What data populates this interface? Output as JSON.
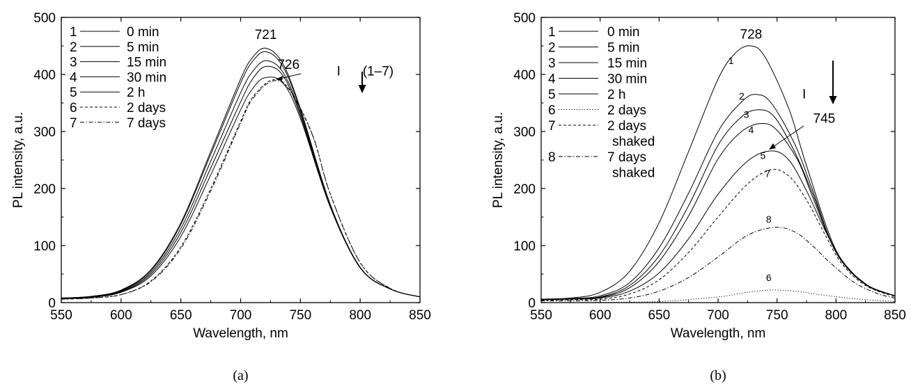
{
  "chart_data": [
    {
      "type": "line",
      "caption": "(a)",
      "xlabel": "Wavelength, nm",
      "ylabel": "PL intensity, a.u.",
      "xlim": [
        550,
        850
      ],
      "ylim": [
        0,
        500
      ],
      "xticks": [
        550,
        600,
        650,
        700,
        750,
        800,
        850
      ],
      "yticks": [
        0,
        100,
        200,
        300,
        400,
        500
      ],
      "legend_position": "top-left",
      "series": [
        {
          "id": "1",
          "name": "0 min",
          "style": "solid",
          "x": [
            550,
            575,
            600,
            625,
            650,
            675,
            700,
            710,
            721,
            735,
            750,
            775,
            800,
            825,
            850
          ],
          "y": [
            8,
            11,
            22,
            58,
            140,
            265,
            392,
            430,
            446,
            420,
            340,
            172,
            62,
            24,
            10
          ]
        },
        {
          "id": "2",
          "name": "5 min",
          "style": "solid",
          "x": [
            550,
            575,
            600,
            625,
            650,
            675,
            700,
            710,
            721,
            735,
            750,
            775,
            800,
            825,
            850
          ],
          "y": [
            8,
            11,
            21,
            56,
            137,
            260,
            385,
            423,
            440,
            415,
            337,
            170,
            61,
            24,
            10
          ]
        },
        {
          "id": "3",
          "name": "15 min",
          "style": "solid",
          "x": [
            550,
            575,
            600,
            625,
            650,
            675,
            700,
            710,
            721,
            735,
            750,
            775,
            800,
            825,
            850
          ],
          "y": [
            8,
            10,
            20,
            53,
            130,
            248,
            368,
            405,
            424,
            405,
            332,
            169,
            61,
            24,
            10
          ]
        },
        {
          "id": "4",
          "name": "30 min",
          "style": "solid",
          "x": [
            550,
            575,
            600,
            625,
            650,
            675,
            700,
            710,
            721,
            735,
            750,
            775,
            800,
            825,
            850
          ],
          "y": [
            7,
            10,
            19,
            50,
            123,
            236,
            352,
            392,
            414,
            399,
            328,
            168,
            61,
            24,
            10
          ]
        },
        {
          "id": "5",
          "name": "2 h",
          "style": "solid",
          "x": [
            550,
            575,
            600,
            625,
            650,
            675,
            700,
            710,
            720,
            735,
            750,
            775,
            800,
            825,
            850
          ],
          "y": [
            7,
            9,
            18,
            47,
            116,
            224,
            338,
            375,
            394,
            386,
            323,
            167,
            61,
            24,
            10
          ]
        },
        {
          "id": "6",
          "name": "2 days",
          "style": "dashed",
          "x": [
            550,
            575,
            600,
            625,
            650,
            675,
            700,
            710,
            726,
            740,
            760,
            775,
            800,
            825,
            850
          ],
          "y": [
            6,
            8,
            14,
            38,
            98,
            200,
            318,
            360,
            390,
            376,
            295,
            190,
            70,
            25,
            10
          ]
        },
        {
          "id": "7",
          "name": "7 days",
          "style": "dashdot",
          "x": [
            550,
            575,
            600,
            625,
            650,
            675,
            700,
            710,
            726,
            740,
            760,
            775,
            800,
            825,
            850
          ],
          "y": [
            6,
            8,
            14,
            37,
            95,
            196,
            315,
            357,
            388,
            375,
            294,
            190,
            70,
            25,
            10
          ]
        }
      ],
      "annotations": [
        {
          "text": "721",
          "x": 721,
          "y": 462
        },
        {
          "text": "726",
          "x": 740,
          "y": 410
        },
        {
          "text": "(1–7)",
          "x": 815,
          "y": 398
        },
        {
          "text": "I",
          "x": 782,
          "y": 398
        }
      ]
    },
    {
      "type": "line",
      "caption": "(b)",
      "xlabel": "Wavelength, nm",
      "ylabel": "PL intensity, a.u.",
      "xlim": [
        550,
        850
      ],
      "ylim": [
        0,
        500
      ],
      "xticks": [
        550,
        600,
        650,
        700,
        750,
        800,
        850
      ],
      "yticks": [
        0,
        100,
        200,
        300,
        400,
        500
      ],
      "legend_position": "top-left",
      "series": [
        {
          "id": "1",
          "name": "0 min",
          "style": "solid",
          "x": [
            550,
            575,
            600,
            625,
            650,
            675,
            700,
            715,
            728,
            740,
            760,
            775,
            800,
            825,
            850
          ],
          "y": [
            6,
            8,
            18,
            55,
            140,
            265,
            392,
            438,
            450,
            430,
            340,
            240,
            92,
            33,
            12
          ]
        },
        {
          "id": "2",
          "name": "5 min",
          "style": "solid",
          "x": [
            550,
            575,
            600,
            625,
            650,
            675,
            700,
            720,
            732,
            745,
            765,
            780,
            800,
            825,
            850
          ],
          "y": [
            6,
            7,
            12,
            35,
            96,
            192,
            300,
            352,
            365,
            350,
            278,
            198,
            88,
            32,
            12
          ]
        },
        {
          "id": "3",
          "name": "15 min",
          "style": "solid",
          "x": [
            550,
            575,
            600,
            625,
            650,
            675,
            700,
            720,
            735,
            748,
            765,
            780,
            800,
            825,
            850
          ],
          "y": [
            6,
            7,
            10,
            30,
            82,
            170,
            276,
            326,
            338,
            325,
            264,
            192,
            90,
            32,
            12
          ]
        },
        {
          "id": "4",
          "name": "30 min",
          "style": "solid",
          "x": [
            550,
            575,
            600,
            625,
            650,
            675,
            700,
            720,
            737,
            750,
            768,
            780,
            800,
            825,
            850
          ],
          "y": [
            6,
            7,
            9,
            26,
            72,
            152,
            252,
            300,
            314,
            302,
            248,
            186,
            90,
            32,
            12
          ]
        },
        {
          "id": "5",
          "name": "2 h",
          "style": "solid",
          "x": [
            550,
            575,
            600,
            625,
            650,
            675,
            700,
            725,
            745,
            760,
            775,
            790,
            805,
            825,
            850
          ],
          "y": [
            5,
            6,
            8,
            20,
            52,
            112,
            190,
            248,
            266,
            250,
            196,
            130,
            72,
            32,
            12
          ]
        },
        {
          "id": "6",
          "name": "2 days",
          "style": "dotted",
          "x": [
            550,
            600,
            650,
            700,
            725,
            745,
            765,
            790,
            820,
            850
          ],
          "y": [
            0,
            0.5,
            2,
            10,
            18,
            22,
            20,
            13,
            6,
            2
          ]
        },
        {
          "id": "7",
          "name": "2 days shaked",
          "style": "dashed",
          "x": [
            550,
            575,
            600,
            625,
            650,
            675,
            700,
            725,
            745,
            760,
            775,
            790,
            805,
            825,
            850
          ],
          "y": [
            4,
            5,
            6,
            15,
            40,
            88,
            150,
            208,
            233,
            222,
            180,
            122,
            68,
            30,
            10
          ]
        },
        {
          "id": "8",
          "name": "7 days shaked",
          "style": "dashdot",
          "x": [
            550,
            575,
            600,
            625,
            650,
            675,
            700,
            725,
            748,
            765,
            780,
            795,
            815,
            835,
            850
          ],
          "y": [
            3,
            3,
            4,
            8,
            20,
            44,
            80,
            118,
            132,
            124,
            100,
            70,
            36,
            16,
            8
          ]
        }
      ],
      "curve_labels": [
        {
          "text": "1",
          "x": 711,
          "y": 418
        },
        {
          "text": "2",
          "x": 720,
          "y": 356
        },
        {
          "text": "3",
          "x": 724,
          "y": 324
        },
        {
          "text": "4",
          "x": 728,
          "y": 297
        },
        {
          "text": "5",
          "x": 738,
          "y": 252
        },
        {
          "text": "7",
          "x": 742,
          "y": 220
        },
        {
          "text": "8",
          "x": 743,
          "y": 140
        },
        {
          "text": "6",
          "x": 743,
          "y": 38
        }
      ],
      "annotations": [
        {
          "text": "728",
          "x": 728,
          "y": 463
        },
        {
          "text": "745",
          "x": 790,
          "y": 315
        },
        {
          "text": "I",
          "x": 773,
          "y": 358
        }
      ]
    }
  ]
}
